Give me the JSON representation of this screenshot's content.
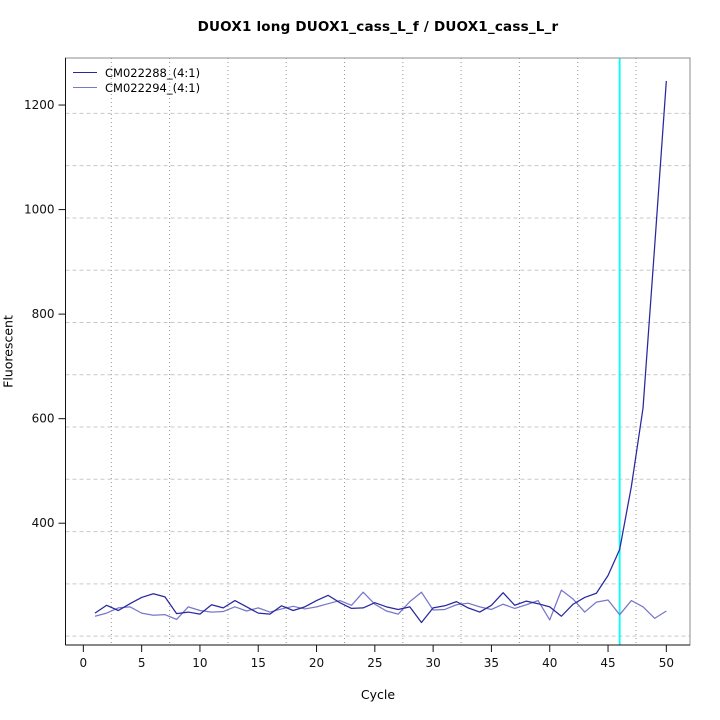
{
  "title": "DUOX1 long DUOX1_cass_L_f / DUOX1_cass_L_r",
  "legend": {
    "entries": [
      {
        "label": "CM022288_(4:1)",
        "color": "#28289E"
      },
      {
        "label": "CM022294_(4:1)",
        "color": "#7878CA"
      }
    ]
  },
  "axes": {
    "xlabel": "Cycle",
    "ylabel": "Fluorescent"
  },
  "colors": {
    "box": "#8c8c8c",
    "axis": "#111111",
    "tick_text": "#111111",
    "hgrid": "#c9c9c9",
    "vgrid": "#969696",
    "threshold_line": "#00FFFF"
  },
  "chart_data": {
    "type": "line",
    "title": "DUOX1 long DUOX1_cass_L_f / DUOX1_cass_L_r",
    "xlabel": "Cycle",
    "ylabel": "Fluorescent",
    "x_range": [
      -1.53,
      52.03
    ],
    "y_range": [
      167,
      1290
    ],
    "x_ticks": [
      0,
      5,
      10,
      15,
      20,
      25,
      30,
      35,
      40,
      45,
      50
    ],
    "y_ticks": [
      400,
      600,
      800,
      1000,
      1200
    ],
    "x_gridlines": [
      2.4,
      7.4,
      12.4,
      17.4,
      22.4,
      27.4,
      32.4,
      37.4,
      42.4,
      47.4
    ],
    "y_gridlines": [
      1184,
      1084,
      984,
      884,
      784,
      684,
      584,
      484,
      384,
      284,
      184
    ],
    "grid": "on",
    "legend_position": "top-left",
    "x": [
      1,
      2,
      3,
      4,
      5,
      6,
      7,
      8,
      9,
      10,
      11,
      12,
      13,
      14,
      15,
      16,
      17,
      18,
      19,
      20,
      21,
      22,
      23,
      24,
      25,
      26,
      27,
      28,
      29,
      30,
      31,
      32,
      33,
      34,
      35,
      36,
      37,
      38,
      39,
      40,
      41,
      42,
      43,
      44,
      45,
      46,
      47,
      48,
      49,
      50
    ],
    "series": [
      {
        "name": "CM022288_(4:1)",
        "color": "#28289E",
        "values": [
          228,
          243,
          233,
          246,
          258,
          265,
          259,
          227,
          230,
          226,
          244,
          238,
          252,
          240,
          228,
          226,
          242,
          233,
          240,
          252,
          262,
          248,
          237,
          238,
          248,
          240,
          235,
          240,
          210,
          238,
          242,
          250,
          238,
          230,
          243,
          267,
          243,
          251,
          246,
          240,
          222,
          245,
          258,
          266,
          300,
          350,
          470,
          620,
          930,
          1246
        ]
      },
      {
        "name": "CM022294_(4:1)",
        "color": "#7878CA",
        "values": [
          222,
          228,
          238,
          240,
          228,
          224,
          225,
          216,
          240,
          233,
          230,
          231,
          240,
          232,
          238,
          230,
          236,
          241,
          236,
          240,
          246,
          252,
          243,
          268,
          245,
          232,
          226,
          250,
          268,
          234,
          235,
          244,
          247,
          240,
          235,
          245,
          237,
          244,
          252,
          215,
          272,
          255,
          230,
          249,
          253,
          225,
          252,
          240,
          218,
          232
        ]
      }
    ],
    "vline": {
      "x": 46,
      "color": "#00FFFF"
    }
  }
}
